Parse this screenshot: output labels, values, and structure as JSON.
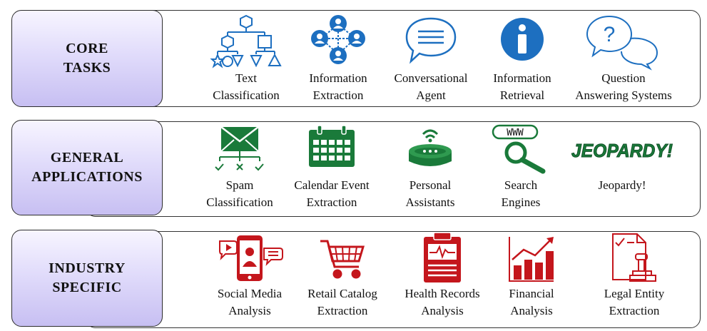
{
  "colors": {
    "core": "#1d6fc0",
    "general": "#1a7a3a",
    "industry": "#c4161c",
    "label_gradient_end": "#c7bff2"
  },
  "rows": [
    {
      "label_line1": "CORE",
      "label_line2": "TASKS",
      "items": [
        {
          "line1": "Text",
          "line2": "Classification",
          "icon": "shapes-tree-icon"
        },
        {
          "line1": "Information",
          "line2": "Extraction",
          "icon": "people-network-icon"
        },
        {
          "line1": "Conversational",
          "line2": "Agent",
          "icon": "speech-bubble-icon"
        },
        {
          "line1": "Information",
          "line2": "Retrieval",
          "icon": "info-circle-icon"
        },
        {
          "line1": "Question",
          "line2": "Answering Systems",
          "icon": "question-bubbles-icon"
        }
      ]
    },
    {
      "label_line1": "GENERAL",
      "label_line2": "APPLICATIONS",
      "items": [
        {
          "line1": "Spam",
          "line2": "Classification",
          "icon": "envelope-sort-icon"
        },
        {
          "line1": "Calendar Event",
          "line2": "Extraction",
          "icon": "calendar-icon"
        },
        {
          "line1": "Personal",
          "line2": "Assistants",
          "icon": "smart-speaker-icon"
        },
        {
          "line1": "Search",
          "line2": "Engines",
          "icon": "www-magnifier-icon",
          "icon_text": "WWW"
        },
        {
          "line1": "Jeopardy!",
          "line2": "",
          "icon": "jeopardy-logo-icon",
          "icon_text": "JEOPARDY!"
        }
      ]
    },
    {
      "label_line1": "INDUSTRY",
      "label_line2": "SPECIFIC",
      "items": [
        {
          "line1": "Social Media",
          "line2": "Analysis",
          "icon": "smartphone-social-icon"
        },
        {
          "line1": "Retail Catalog",
          "line2": "Extraction",
          "icon": "shopping-cart-icon"
        },
        {
          "line1": "Health Records",
          "line2": "Analysis",
          "icon": "medical-clipboard-icon"
        },
        {
          "line1": "Financial",
          "line2": "Analysis",
          "icon": "bar-chart-up-icon"
        },
        {
          "line1": "Legal Entity",
          "line2": "Extraction",
          "icon": "document-stamp-icon"
        }
      ]
    }
  ]
}
